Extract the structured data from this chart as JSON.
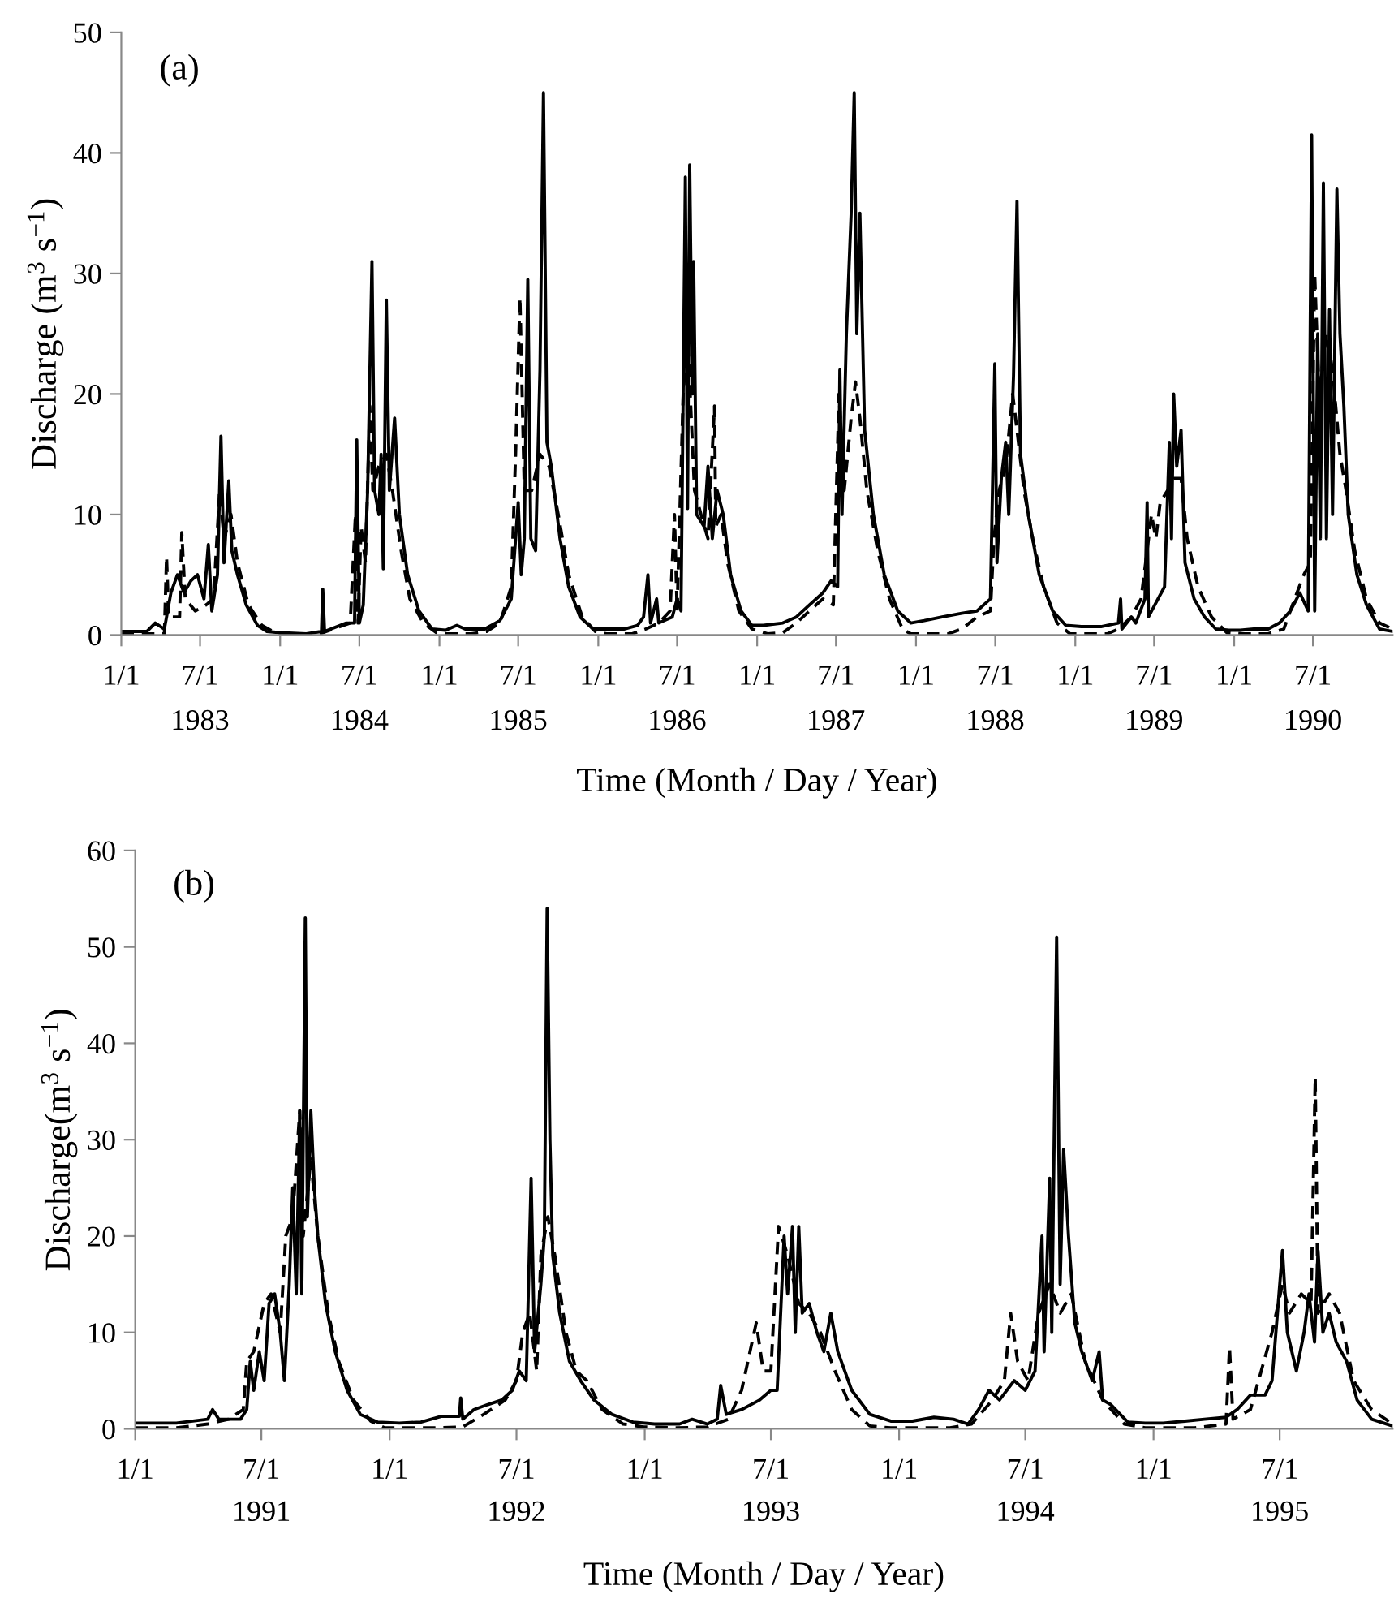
{
  "chart_data": [
    {
      "type": "line",
      "title": "(a)",
      "xlabel": "Time (Month / Day / Year)",
      "ylabel": "Discharge (m$^{3}$ s$^{−1}$)",
      "x2lim": [
        "1983-01-01",
        "1990-12-31"
      ],
      "x2ticks": [
        {
          "value": "1983-07-01",
          "label": "1983"
        },
        {
          "value": "1984-07-01",
          "label": "1984"
        },
        {
          "value": "1985-07-01",
          "label": "1985"
        },
        {
          "value": "1986-07-01",
          "label": "1986"
        },
        {
          "value": "1987-07-01",
          "label": "1987"
        },
        {
          "value": "1988-07-01",
          "label": "1988"
        },
        {
          "value": "1989-07-01",
          "label": "1989"
        },
        {
          "value": "1990-07-01",
          "label": "1990"
        }
      ],
      "ylim": [
        0,
        50
      ],
      "yticks": [
        0,
        10,
        20,
        30,
        40,
        50
      ],
      "xlim": [
        "1983-01-01",
        "1990-12-31"
      ],
      "grid": false,
      "legend": false,
      "marker": "none",
      "xticks": [
        {
          "value": "1983-01-01",
          "label": "1/1"
        },
        {
          "value": "1983-07-01",
          "label": "7/1"
        },
        {
          "value": "1984-01-01",
          "label": "1/1"
        },
        {
          "value": "1984-07-01",
          "label": "7/1"
        },
        {
          "value": "1985-01-01",
          "label": "1/1"
        },
        {
          "value": "1985-07-01",
          "label": "7/1"
        },
        {
          "value": "1986-01-01",
          "label": "1/1"
        },
        {
          "value": "1986-07-01",
          "label": "7/1"
        },
        {
          "value": "1987-01-01",
          "label": "1/1"
        },
        {
          "value": "1987-07-01",
          "label": "7/1"
        },
        {
          "value": "1988-01-01",
          "label": "1/1"
        },
        {
          "value": "1988-07-01",
          "label": "7/1"
        },
        {
          "value": "1989-01-01",
          "label": "1/1"
        },
        {
          "value": "1989-07-01",
          "label": "7/1"
        },
        {
          "value": "1990-01-01",
          "label": "1/1"
        },
        {
          "value": "1990-07-01",
          "label": "7/1"
        }
      ],
      "series": [
        {
          "color": "#000000",
          "line_style": "solid",
          "x": [
            "1983-01-01",
            "1983-03-01",
            "1983-03-20",
            "1983-04-10",
            "1983-04-25",
            "1983-05-10",
            "1983-05-25",
            "1983-06-10",
            "1983-06-25",
            "1983-07-10",
            "1983-07-20",
            "1983-07-28",
            "1983-08-10",
            "1983-08-18",
            "1983-08-25",
            "1983-09-05",
            "1983-09-12",
            "1983-09-25",
            "1983-10-15",
            "1983-11-10",
            "1983-12-01",
            "1984-01-01",
            "1984-03-01",
            "1984-04-05",
            "1984-04-08",
            "1984-04-12",
            "1984-06-01",
            "1984-06-20",
            "1984-06-25",
            "1984-07-01",
            "1984-07-10",
            "1984-07-20",
            "1984-07-30",
            "1984-08-05",
            "1984-08-15",
            "1984-08-20",
            "1984-08-25",
            "1984-09-01",
            "1984-09-08",
            "1984-09-20",
            "1984-10-01",
            "1984-10-20",
            "1984-11-15",
            "1984-12-15",
            "1985-01-15",
            "1985-02-10",
            "1985-03-01",
            "1985-04-15",
            "1985-05-20",
            "1985-06-15",
            "1985-07-01",
            "1985-07-08",
            "1985-07-15",
            "1985-07-23",
            "1985-07-30",
            "1985-08-10",
            "1985-08-20",
            "1985-08-28",
            "1985-09-05",
            "1985-09-15",
            "1985-10-05",
            "1985-10-25",
            "1985-11-20",
            "1985-12-20",
            "1986-01-15",
            "1986-03-01",
            "1986-04-01",
            "1986-04-15",
            "1986-04-25",
            "1986-05-01",
            "1986-05-15",
            "1986-05-20",
            "1986-06-20",
            "1986-07-01",
            "1986-07-10",
            "1986-07-20",
            "1986-07-25",
            "1986-07-30",
            "1986-08-05",
            "1986-08-08",
            "1986-08-15",
            "1986-09-01",
            "1986-09-10",
            "1986-09-20",
            "1986-10-01",
            "1986-10-15",
            "1986-11-01",
            "1986-11-25",
            "1986-12-20",
            "1987-01-15",
            "1987-03-01",
            "1987-04-01",
            "1987-05-01",
            "1987-06-01",
            "1987-06-20",
            "1987-07-05",
            "1987-07-10",
            "1987-07-15",
            "1987-07-25",
            "1987-08-05",
            "1987-08-12",
            "1987-08-18",
            "1987-08-25",
            "1987-09-05",
            "1987-09-25",
            "1987-10-20",
            "1987-11-20",
            "1987-12-20",
            "1988-01-20",
            "1988-03-01",
            "1988-04-15",
            "1988-05-20",
            "1988-06-20",
            "1988-06-30",
            "1988-07-05",
            "1988-07-15",
            "1988-07-25",
            "1988-08-01",
            "1988-08-12",
            "1988-08-20",
            "1988-08-28",
            "1988-09-15",
            "1988-10-10",
            "1988-11-10",
            "1988-12-10",
            "1989-01-15",
            "1989-03-01",
            "1989-04-10",
            "1989-04-15",
            "1989-04-18",
            "1989-05-10",
            "1989-05-20",
            "1989-06-10",
            "1989-06-15",
            "1989-06-18",
            "1989-07-10",
            "1989-07-25",
            "1989-08-05",
            "1989-08-10",
            "1989-08-15",
            "1989-08-22",
            "1989-09-01",
            "1989-09-10",
            "1989-10-01",
            "1989-10-25",
            "1989-11-20",
            "1989-12-20",
            "1990-01-15",
            "1990-02-15",
            "1990-03-20",
            "1990-04-15",
            "1990-05-10",
            "1990-06-01",
            "1990-06-20",
            "1990-06-28",
            "1990-07-05",
            "1990-07-12",
            "1990-07-18",
            "1990-07-25",
            "1990-08-01",
            "1990-08-08",
            "1990-08-15",
            "1990-08-25",
            "1990-09-01",
            "1990-09-10",
            "1990-09-20",
            "1990-10-10",
            "1990-11-01",
            "1990-12-01",
            "1990-12-31"
          ],
          "values": [
            0.3,
            0.3,
            1.0,
            0.5,
            3.5,
            5,
            3.5,
            4.5,
            5,
            3,
            7.5,
            2,
            5,
            16.5,
            6,
            12.8,
            7,
            5,
            2.5,
            0.8,
            0.3,
            0.2,
            0.1,
            0.3,
            3.8,
            0.3,
            1,
            1,
            16.2,
            1,
            2.5,
            12,
            31,
            12,
            10,
            15,
            5.5,
            27.8,
            12,
            18,
            10,
            5,
            2,
            0.5,
            0.4,
            0.8,
            0.5,
            0.5,
            1.2,
            3,
            11,
            5,
            8,
            29.5,
            8,
            7,
            22,
            45,
            16,
            14,
            8,
            4,
            1.5,
            0.5,
            0.5,
            0.5,
            0.8,
            1.5,
            5,
            1,
            3,
            1,
            1.5,
            3,
            2,
            38,
            10.5,
            39,
            20,
            31,
            10,
            9,
            14,
            8,
            12,
            10,
            5,
            2,
            0.8,
            0.8,
            1,
            1.5,
            2.5,
            3.5,
            4.5,
            4,
            22,
            10,
            25,
            35,
            45,
            25,
            35,
            17,
            10,
            5,
            2,
            1,
            1.2,
            1.5,
            1.8,
            2,
            3,
            22.5,
            6,
            13,
            16,
            10,
            21.5,
            36,
            15,
            10,
            5,
            2,
            0.8,
            0.7,
            0.7,
            1,
            3,
            0.5,
            1.5,
            1,
            3,
            11,
            1.5,
            3,
            4,
            16,
            8,
            20,
            14,
            17,
            6,
            3,
            1.5,
            0.5,
            0.4,
            0.4,
            0.5,
            0.5,
            1,
            2,
            3.5,
            2,
            41.5,
            2,
            25,
            8,
            37.5,
            8,
            27,
            10,
            37,
            25,
            19,
            10,
            5,
            2.5,
            0.5,
            0.3
          ]
        },
        {
          "color": "#000000",
          "line_style": "dashed",
          "x": [
            "1983-01-01",
            "1983-03-20",
            "1983-04-10",
            "1983-04-15",
            "1983-04-20",
            "1983-05-15",
            "1983-05-20",
            "1983-05-28",
            "1983-06-20",
            "1983-07-15",
            "1983-08-01",
            "1983-08-15",
            "1983-08-25",
            "1983-09-10",
            "1983-09-25",
            "1983-10-20",
            "1983-11-20",
            "1983-12-20",
            "1984-01-20",
            "1984-04-01",
            "1984-05-01",
            "1984-06-10",
            "1984-06-22",
            "1984-06-28",
            "1984-07-05",
            "1984-07-15",
            "1984-07-25",
            "1984-08-01",
            "1984-08-15",
            "1984-09-01",
            "1984-09-15",
            "1984-10-05",
            "1984-10-25",
            "1984-11-25",
            "1984-12-25",
            "1985-01-20",
            "1985-03-15",
            "1985-04-20",
            "1985-05-20",
            "1985-06-15",
            "1985-06-25",
            "1985-07-05",
            "1985-07-15",
            "1985-08-01",
            "1985-08-20",
            "1985-09-10",
            "1985-10-01",
            "1985-10-25",
            "1985-11-25",
            "1985-12-25",
            "1986-01-20",
            "1986-03-20",
            "1986-04-20",
            "1986-05-20",
            "1986-06-15",
            "1986-06-25",
            "1986-07-01",
            "1986-07-15",
            "1986-07-25",
            "1986-08-10",
            "1986-08-25",
            "1986-09-10",
            "1986-09-25",
            "1986-09-28",
            "1986-10-10",
            "1986-10-25",
            "1986-11-20",
            "1986-12-20",
            "1987-01-25",
            "1987-03-01",
            "1987-04-01",
            "1987-05-01",
            "1987-06-01",
            "1987-06-25",
            "1987-07-08",
            "1987-07-20",
            "1987-08-05",
            "1987-08-15",
            "1987-08-25",
            "1987-09-10",
            "1987-10-05",
            "1987-11-01",
            "1987-12-01",
            "1987-12-20",
            "1988-02-01",
            "1988-03-15",
            "1988-04-15",
            "1988-05-20",
            "1988-06-20",
            "1988-06-28",
            "1988-07-10",
            "1988-07-25",
            "1988-08-10",
            "1988-08-20",
            "1988-09-05",
            "1988-09-25",
            "1988-10-20",
            "1988-11-20",
            "1988-12-20",
            "1989-01-20",
            "1989-03-15",
            "1989-04-10",
            "1989-05-10",
            "1989-06-01",
            "1989-06-15",
            "1989-06-25",
            "1989-07-05",
            "1989-07-15",
            "1989-08-01",
            "1989-08-15",
            "1989-09-01",
            "1989-09-15",
            "1989-10-10",
            "1989-11-10",
            "1989-12-15",
            "1990-01-20",
            "1990-03-20",
            "1990-04-25",
            "1990-05-20",
            "1990-06-10",
            "1990-06-25",
            "1990-07-05",
            "1990-07-15",
            "1990-08-01",
            "1990-08-15",
            "1990-09-01",
            "1990-09-15",
            "1990-10-05",
            "1990-11-01",
            "1990-12-01",
            "1990-12-31"
          ],
          "values": [
            0.1,
            0.1,
            0.1,
            6.5,
            1.5,
            1.5,
            8.5,
            3,
            2,
            2.5,
            3,
            12,
            8,
            10,
            6,
            2.5,
            0.8,
            0.2,
            0.1,
            0.1,
            0.5,
            1,
            10,
            1,
            9,
            6,
            19,
            12,
            14,
            15,
            12,
            7,
            3,
            1,
            0.2,
            0.1,
            0.1,
            0.3,
            1,
            4,
            15,
            28,
            12,
            12,
            15,
            14,
            10,
            5,
            1.5,
            0.3,
            0.1,
            0.1,
            0.5,
            1,
            2,
            10,
            2,
            20,
            25,
            12,
            10,
            8,
            19,
            9,
            10,
            6,
            2,
            0.5,
            0.1,
            0.2,
            1,
            2,
            3,
            2.5,
            20,
            12,
            18,
            21,
            18,
            12,
            7,
            3,
            0.5,
            0.1,
            0.1,
            0.1,
            0.5,
            1.5,
            2,
            8,
            12,
            14,
            20,
            17,
            12,
            8,
            4,
            1,
            0.1,
            0.1,
            0.1,
            0.5,
            1.5,
            3,
            7,
            10,
            8,
            11,
            12,
            13,
            13,
            8,
            4,
            1.5,
            0.2,
            0.1,
            0.1,
            0.5,
            3,
            5,
            6,
            30,
            20,
            25,
            22,
            15,
            12,
            7,
            3,
            1,
            0.5
          ]
        }
      ]
    },
    {
      "type": "line",
      "title": "(b)",
      "xlabel": "Time (Month / Day / Year)",
      "ylabel": "Discharge(m$^{3}$ s$^{−1}$)",
      "x2lim": [
        "1991-01-01",
        "1995-12-10"
      ],
      "x2ticks": [
        {
          "value": "1991-07-01",
          "label": "1991"
        },
        {
          "value": "1992-07-01",
          "label": "1992"
        },
        {
          "value": "1993-07-01",
          "label": "1993"
        },
        {
          "value": "1994-07-01",
          "label": "1994"
        },
        {
          "value": "1995-07-01",
          "label": "1995"
        }
      ],
      "ylim": [
        0,
        60
      ],
      "yticks": [
        0,
        10,
        20,
        30,
        40,
        50,
        60
      ],
      "xlim": [
        "1991-01-01",
        "1995-12-10"
      ],
      "grid": false,
      "legend": false,
      "marker": "none",
      "xticks": [
        {
          "value": "1991-01-01",
          "label": "1/1"
        },
        {
          "value": "1991-07-01",
          "label": "7/1"
        },
        {
          "value": "1992-01-01",
          "label": "1/1"
        },
        {
          "value": "1992-07-01",
          "label": "7/1"
        },
        {
          "value": "1993-01-01",
          "label": "1/1"
        },
        {
          "value": "1993-07-01",
          "label": "7/1"
        },
        {
          "value": "1994-01-01",
          "label": "1/1"
        },
        {
          "value": "1994-07-01",
          "label": "7/1"
        },
        {
          "value": "1995-01-01",
          "label": "1/1"
        },
        {
          "value": "1995-07-01",
          "label": "7/1"
        }
      ],
      "series": [
        {
          "color": "#000000",
          "line_style": "solid",
          "x": [
            "1991-01-01",
            "1991-03-01",
            "1991-04-15",
            "1991-04-22",
            "1991-05-01",
            "1991-06-01",
            "1991-06-10",
            "1991-06-15",
            "1991-06-20",
            "1991-06-28",
            "1991-07-05",
            "1991-07-12",
            "1991-07-20",
            "1991-07-28",
            "1991-08-03",
            "1991-08-10",
            "1991-08-15",
            "1991-08-20",
            "1991-08-25",
            "1991-08-28",
            "1991-09-02",
            "1991-09-05",
            "1991-09-10",
            "1991-09-15",
            "1991-09-20",
            "1991-10-01",
            "1991-10-15",
            "1991-11-01",
            "1991-11-20",
            "1991-12-15",
            "1992-01-15",
            "1992-02-15",
            "1992-03-15",
            "1992-04-10",
            "1992-04-12",
            "1992-04-15",
            "1992-05-01",
            "1992-05-20",
            "1992-06-10",
            "1992-06-25",
            "1992-07-05",
            "1992-07-15",
            "1992-07-22",
            "1992-07-27",
            "1992-08-05",
            "1992-08-10",
            "1992-08-14",
            "1992-08-18",
            "1992-08-22",
            "1992-09-01",
            "1992-09-15",
            "1992-10-01",
            "1992-10-20",
            "1992-11-15",
            "1992-12-15",
            "1993-01-15",
            "1993-02-20",
            "1993-03-10",
            "1993-04-01",
            "1993-04-15",
            "1993-04-20",
            "1993-04-28",
            "1993-05-20",
            "1993-06-15",
            "1993-07-01",
            "1993-07-10",
            "1993-07-20",
            "1993-07-25",
            "1993-08-01",
            "1993-08-05",
            "1993-08-10",
            "1993-08-15",
            "1993-08-25",
            "1993-09-05",
            "1993-09-15",
            "1993-09-25",
            "1993-10-05",
            "1993-10-25",
            "1993-11-20",
            "1993-12-20",
            "1994-01-20",
            "1994-02-20",
            "1994-03-20",
            "1994-04-10",
            "1994-04-25",
            "1994-05-10",
            "1994-05-25",
            "1994-06-15",
            "1994-07-01",
            "1994-07-15",
            "1994-07-25",
            "1994-07-28",
            "1994-08-05",
            "1994-08-08",
            "1994-08-15",
            "1994-08-20",
            "1994-08-25",
            "1994-09-01",
            "1994-09-10",
            "1994-09-20",
            "1994-10-05",
            "1994-10-15",
            "1994-10-20",
            "1994-11-01",
            "1994-11-25",
            "1994-12-20",
            "1995-01-15",
            "1995-02-15",
            "1995-03-15",
            "1995-04-15",
            "1995-05-01",
            "1995-05-20",
            "1995-06-10",
            "1995-06-20",
            "1995-07-05",
            "1995-07-12",
            "1995-07-25",
            "1995-08-05",
            "1995-08-12",
            "1995-08-20",
            "1995-08-25",
            "1995-09-01",
            "1995-09-10",
            "1995-09-20",
            "1995-10-05",
            "1995-10-20",
            "1995-11-10",
            "1995-12-10"
          ],
          "values": [
            0.6,
            0.6,
            1,
            2,
            1,
            1,
            2,
            7,
            4,
            8,
            5,
            13,
            14,
            10,
            5,
            15,
            25,
            14,
            33,
            14,
            53,
            22,
            33,
            25,
            20,
            13,
            8,
            4,
            1.5,
            0.7,
            0.6,
            0.7,
            1.3,
            1.3,
            3.2,
            1,
            2,
            2.5,
            3,
            4,
            6,
            5,
            26,
            8,
            15,
            20,
            54,
            30,
            18,
            12,
            7,
            5,
            3,
            1.5,
            0.7,
            0.5,
            0.5,
            1,
            0.5,
            1,
            4.5,
            1.5,
            2,
            3,
            4,
            4,
            20,
            14,
            21,
            10,
            21,
            12,
            13,
            10,
            8,
            12,
            8,
            4,
            1.5,
            0.8,
            0.8,
            1.2,
            1,
            0.5,
            2,
            4,
            3,
            5,
            4,
            6,
            20,
            8,
            26,
            10,
            51,
            15,
            29,
            20,
            11,
            8,
            5,
            8,
            3,
            2.5,
            0.7,
            0.6,
            0.6,
            0.8,
            1,
            1.2,
            2,
            3.5,
            3.5,
            5,
            18.5,
            10,
            6,
            10,
            14,
            9,
            18.5,
            10,
            12,
            9,
            7,
            3,
            1,
            0.3
          ]
        },
        {
          "color": "#000000",
          "line_style": "dashed",
          "x": [
            "1991-01-01",
            "1991-03-01",
            "1991-04-15",
            "1991-05-15",
            "1991-06-05",
            "1991-06-10",
            "1991-06-20",
            "1991-07-05",
            "1991-07-15",
            "1991-07-28",
            "1991-08-05",
            "1991-08-15",
            "1991-08-25",
            "1991-08-30",
            "1991-09-10",
            "1991-09-20",
            "1991-10-05",
            "1991-10-20",
            "1991-11-10",
            "1991-12-05",
            "1991-12-25",
            "1992-03-01",
            "1992-04-15",
            "1992-05-15",
            "1992-06-15",
            "1992-07-01",
            "1992-07-10",
            "1992-07-20",
            "1992-07-30",
            "1992-08-05",
            "1992-08-15",
            "1992-08-25",
            "1992-09-10",
            "1992-09-25",
            "1992-10-10",
            "1992-11-01",
            "1992-12-01",
            "1992-12-31",
            "1993-02-15",
            "1993-04-01",
            "1993-05-01",
            "1993-05-20",
            "1993-06-01",
            "1993-06-10",
            "1993-06-20",
            "1993-07-01",
            "1993-07-12",
            "1993-07-25",
            "1993-08-10",
            "1993-08-25",
            "1993-09-10",
            "1993-10-01",
            "1993-10-25",
            "1993-11-20",
            "1993-12-20",
            "1994-03-15",
            "1994-04-15",
            "1994-05-15",
            "1994-06-01",
            "1994-06-10",
            "1994-06-20",
            "1994-07-05",
            "1994-07-20",
            "1994-08-05",
            "1994-08-20",
            "1994-09-05",
            "1994-09-25",
            "1994-10-20",
            "1994-11-20",
            "1994-12-20",
            "1995-03-01",
            "1995-04-15",
            "1995-04-20",
            "1995-04-25",
            "1995-05-20",
            "1995-06-20",
            "1995-07-05",
            "1995-07-15",
            "1995-08-01",
            "1995-08-15",
            "1995-08-21",
            "1995-08-25",
            "1995-09-10",
            "1995-09-25",
            "1995-10-15",
            "1995-11-10",
            "1995-12-10"
          ],
          "values": [
            0.1,
            0.1,
            0.5,
            1,
            2,
            7,
            8,
            13,
            14,
            10,
            20,
            22,
            33,
            20,
            28,
            20,
            12,
            7,
            3,
            0.8,
            0.1,
            0.1,
            0.2,
            1.5,
            3,
            5,
            10,
            12,
            6,
            18,
            22,
            18,
            10,
            6,
            5,
            2,
            0.5,
            0.2,
            0.1,
            0.2,
            1,
            4,
            8,
            11,
            6,
            6,
            21,
            18,
            13,
            12,
            10,
            6,
            2,
            0.3,
            0.1,
            0.1,
            0.5,
            3,
            5,
            12,
            7,
            5,
            12,
            15,
            12,
            14,
            7,
            3,
            0.5,
            0.1,
            0.1,
            0.5,
            8.5,
            1,
            2,
            10,
            15,
            12,
            14,
            13,
            36.5,
            12,
            14,
            12,
            5,
            2,
            0.5
          ]
        }
      ]
    }
  ]
}
